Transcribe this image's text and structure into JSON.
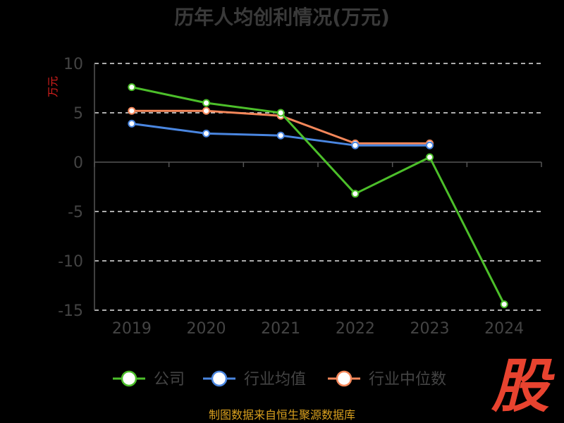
{
  "chart_data": {
    "type": "line",
    "title": "历年人均创利情况(万元)",
    "ylabel": "万元",
    "categories": [
      "2019",
      "2020",
      "2021",
      "2022",
      "2023",
      "2024"
    ],
    "ylim": [
      -15,
      10
    ],
    "yticks": [
      10,
      5,
      0,
      -5,
      -10,
      -15
    ],
    "grid": true,
    "legend_position": "bottom",
    "series": [
      {
        "name": "公司",
        "color": "#4cbf2a",
        "values": [
          7.6,
          6.0,
          5.0,
          -3.2,
          0.5,
          -14.4
        ]
      },
      {
        "name": "行业均值",
        "color": "#4a86e0",
        "values": [
          3.9,
          2.9,
          2.7,
          1.7,
          1.7,
          null
        ]
      },
      {
        "name": "行业中位数",
        "color": "#f4875a",
        "values": [
          5.2,
          5.2,
          4.7,
          1.9,
          1.9,
          null
        ]
      }
    ]
  },
  "footer": {
    "source": "制图数据来自恒生聚源数据库"
  },
  "watermark": {
    "text": "股"
  }
}
